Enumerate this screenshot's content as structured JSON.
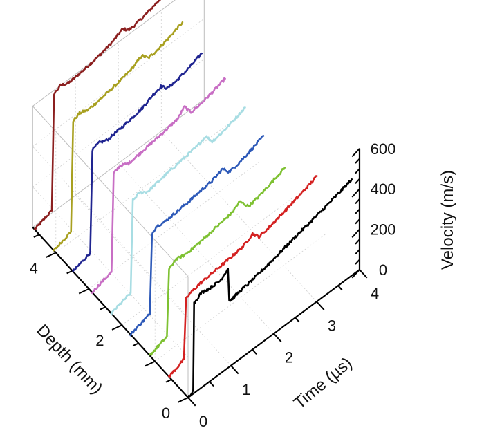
{
  "chart_data": {
    "type": "line",
    "title": "",
    "xlabel": "Time (µs)",
    "ylabel": "Depth (mm)",
    "zlabel": "Velocity (m/s)",
    "xlim": [
      0,
      4
    ],
    "ylim": [
      0,
      4.7
    ],
    "zlim": [
      0,
      600
    ],
    "xticks": [
      {
        "value": 0,
        "label": "0"
      },
      {
        "value": 1,
        "label": "1"
      },
      {
        "value": 2,
        "label": "2"
      },
      {
        "value": 3,
        "label": "3"
      },
      {
        "value": 4,
        "label": "4"
      }
    ],
    "yticks": [
      {
        "value": 0,
        "label": "0"
      },
      {
        "value": 2,
        "label": "2"
      },
      {
        "value": 4,
        "label": "4"
      }
    ],
    "zticks": [
      {
        "value": 0,
        "label": "0"
      },
      {
        "value": 200,
        "label": "200"
      },
      {
        "value": 400,
        "label": "400"
      },
      {
        "value": 600,
        "label": "600"
      }
    ],
    "grid": true,
    "series": [
      {
        "depth": 0.0,
        "color": "#000000",
        "x": [
          0.0,
          0.07,
          0.12,
          0.14,
          0.3,
          0.5,
          0.75,
          0.93,
          0.96,
          1.0,
          1.2,
          1.5,
          2.0,
          2.5,
          3.0,
          3.5,
          3.82
        ],
        "y": [
          0,
          10,
          20,
          445,
          470,
          462,
          460,
          492,
          330,
          325,
          335,
          345,
          370,
          400,
          425,
          455,
          476
        ]
      },
      {
        "depth": 0.58,
        "color": "#d42121",
        "x": [
          0.0,
          0.2,
          0.35,
          0.4,
          0.5,
          0.7,
          0.9,
          1.1,
          1.4,
          1.75,
          1.95,
          2.1,
          2.3,
          2.6,
          3.0,
          3.3,
          3.45
        ],
        "y": [
          0,
          15,
          30,
          320,
          335,
          345,
          350,
          355,
          360,
          372,
          398,
          360,
          366,
          385,
          412,
          433,
          447
        ]
      },
      {
        "depth": 1.16,
        "color": "#7ec132",
        "x": [
          0.0,
          0.2,
          0.4,
          0.45,
          0.6,
          0.8,
          1.0,
          1.3,
          1.6,
          1.9,
          2.1,
          2.3,
          2.5,
          2.8,
          3.15
        ],
        "y": [
          0,
          15,
          30,
          355,
          380,
          370,
          372,
          380,
          392,
          402,
          430,
          375,
          382,
          405,
          432
        ]
      },
      {
        "depth": 1.74,
        "color": "#2d59b8",
        "x": [
          0.0,
          0.2,
          0.45,
          0.5,
          0.6,
          0.8,
          1.0,
          1.3,
          1.6,
          1.9,
          2.15,
          2.3,
          2.5,
          2.8,
          3.1
        ],
        "y": [
          0,
          15,
          30,
          420,
          440,
          432,
          436,
          442,
          452,
          460,
          480,
          442,
          448,
          468,
          493
        ]
      },
      {
        "depth": 2.32,
        "color": "#a8dde3",
        "x": [
          0.0,
          0.2,
          0.45,
          0.5,
          0.65,
          0.85,
          1.1,
          1.4,
          1.7,
          2.0,
          2.2,
          2.35,
          2.55,
          2.85,
          3.12
        ],
        "y": [
          0,
          15,
          30,
          480,
          495,
          470,
          480,
          492,
          502,
          512,
          530,
          480,
          486,
          505,
          526
        ]
      },
      {
        "depth": 2.9,
        "color": "#c86ec4",
        "x": [
          0.0,
          0.2,
          0.45,
          0.5,
          0.65,
          0.85,
          1.1,
          1.4,
          1.7,
          2.0,
          2.15,
          2.3,
          2.5,
          2.8,
          3.1
        ],
        "y": [
          0,
          15,
          30,
          510,
          525,
          505,
          512,
          522,
          532,
          545,
          580,
          528,
          532,
          548,
          568
        ]
      },
      {
        "depth": 3.48,
        "color": "#1f2490",
        "x": [
          0.0,
          0.2,
          0.4,
          0.45,
          0.6,
          0.8,
          1.0,
          1.3,
          1.6,
          1.85,
          2.05,
          2.2,
          2.4,
          2.7,
          3.0
        ],
        "y": [
          0,
          15,
          30,
          530,
          542,
          525,
          530,
          540,
          552,
          578,
          592,
          560,
          562,
          580,
          605
        ]
      },
      {
        "depth": 4.06,
        "color": "#a8a020",
        "x": [
          0.0,
          0.2,
          0.4,
          0.45,
          0.6,
          0.8,
          1.0,
          1.3,
          1.6,
          1.85,
          2.05,
          2.2,
          2.4,
          2.7,
          3.0
        ],
        "y": [
          0,
          15,
          30,
          570,
          585,
          570,
          575,
          585,
          598,
          615,
          640,
          605,
          610,
          630,
          655
        ]
      },
      {
        "depth": 4.64,
        "color": "#8b1f1f",
        "x": [
          0.0,
          0.2,
          0.4,
          0.45,
          0.6,
          0.8,
          1.0,
          1.3,
          1.6,
          1.85,
          2.05,
          2.2,
          2.4,
          2.7,
          3.0
        ],
        "y": [
          0,
          15,
          30,
          600,
          618,
          600,
          605,
          615,
          628,
          645,
          668,
          640,
          645,
          662,
          684
        ]
      }
    ]
  }
}
